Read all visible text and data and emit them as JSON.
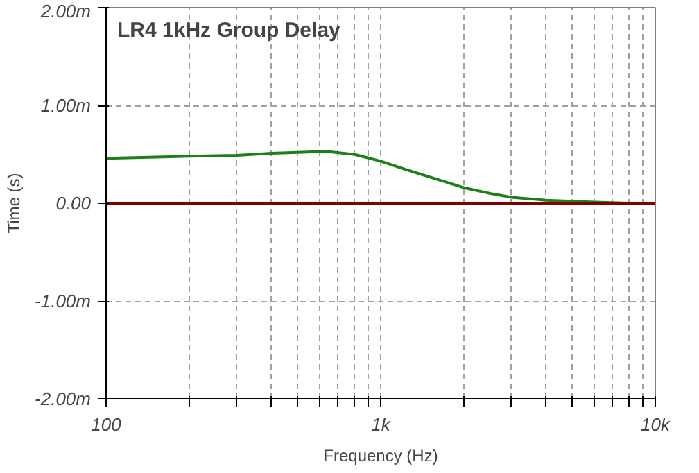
{
  "chart_data": {
    "type": "line",
    "title": "LR4 1kHz Group Delay",
    "xlabel": "Frequency (Hz)",
    "ylabel": "Time (s)",
    "log": "x",
    "xlim": [
      100,
      10000
    ],
    "ylim": [
      -2,
      2
    ],
    "xticks": [
      100,
      {
        "value": 200,
        "label": null
      },
      {
        "value": 300,
        "label": null
      },
      {
        "value": 400,
        "label": null
      },
      {
        "value": 500,
        "label": null
      },
      {
        "value": 600,
        "label": null
      },
      {
        "value": 700,
        "label": null
      },
      {
        "value": 800,
        "label": null
      },
      {
        "value": 900,
        "label": null
      },
      {
        "value": 1000,
        "label": "1k"
      },
      {
        "value": 2000,
        "label": null
      },
      {
        "value": 3000,
        "label": null
      },
      {
        "value": 4000,
        "label": null
      },
      {
        "value": 5000,
        "label": null
      },
      {
        "value": 6000,
        "label": null
      },
      {
        "value": 7000,
        "label": null
      },
      {
        "value": 8000,
        "label": null
      },
      {
        "value": 9000,
        "label": null
      },
      {
        "value": 10000,
        "label": "10k"
      }
    ],
    "yticks": [
      {
        "value": -2,
        "label": "-2.00m"
      },
      {
        "value": -1,
        "label": "-1.00m"
      },
      {
        "value": 0,
        "label": "0.00"
      },
      {
        "value": 1,
        "label": "1.00m"
      },
      {
        "value": 2,
        "label": "2.00m"
      }
    ],
    "grid": true,
    "line_style": "solid",
    "series": [
      {
        "color": "#1a801a",
        "x": [
          100,
          200,
          300,
          400,
          500,
          630,
          800,
          1000,
          1250,
          1500,
          2000,
          2500,
          3000,
          4000,
          5000,
          6000,
          8000
        ],
        "values": [
          0.46,
          0.48,
          0.49,
          0.51,
          0.52,
          0.53,
          0.5,
          0.43,
          0.34,
          0.27,
          0.16,
          0.1,
          0.06,
          0.03,
          0.02,
          0.01,
          0.0
        ]
      },
      {
        "color": "#800000",
        "x": [
          100,
          10000
        ],
        "values": [
          0.0,
          0.0
        ]
      }
    ]
  }
}
